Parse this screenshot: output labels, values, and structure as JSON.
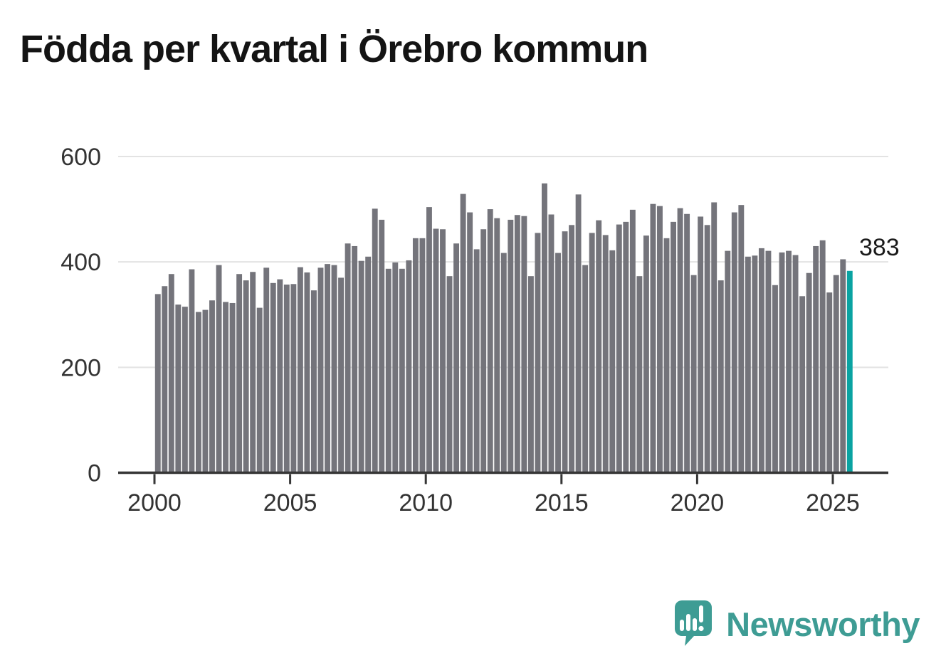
{
  "title": "Födda per kvartal i Örebro kommun",
  "branding": {
    "name": "Newsworthy",
    "icon": "speech-bubble-bar-chart-icon"
  },
  "colors": {
    "bar": "#74747b",
    "highlight": "#0aa3a2",
    "axis": "#363636",
    "grid": "#e3e3e3",
    "tick_label": "#333333",
    "title": "#141414",
    "annotation": "#1a1a1a",
    "brand": "#3e9c94"
  },
  "chart_data": {
    "type": "bar",
    "title": "Födda per kvartal i Örebro kommun",
    "xlabel": "",
    "ylabel": "",
    "grid": "horizontal",
    "legend": "none",
    "ylim": [
      0,
      620
    ],
    "yticks": [
      0,
      200,
      400,
      600
    ],
    "xticks": [
      2000,
      2005,
      2010,
      2015,
      2020,
      2025
    ],
    "highlight_index": 102,
    "highlight_label": "383",
    "x": [
      "2000 Q1",
      "2000 Q2",
      "2000 Q3",
      "2000 Q4",
      "2001 Q1",
      "2001 Q2",
      "2001 Q3",
      "2001 Q4",
      "2002 Q1",
      "2002 Q2",
      "2002 Q3",
      "2002 Q4",
      "2003 Q1",
      "2003 Q2",
      "2003 Q3",
      "2003 Q4",
      "2004 Q1",
      "2004 Q2",
      "2004 Q3",
      "2004 Q4",
      "2005 Q1",
      "2005 Q2",
      "2005 Q3",
      "2005 Q4",
      "2006 Q1",
      "2006 Q2",
      "2006 Q3",
      "2006 Q4",
      "2007 Q1",
      "2007 Q2",
      "2007 Q3",
      "2007 Q4",
      "2008 Q1",
      "2008 Q2",
      "2008 Q3",
      "2008 Q4",
      "2009 Q1",
      "2009 Q2",
      "2009 Q3",
      "2009 Q4",
      "2010 Q1",
      "2010 Q2",
      "2010 Q3",
      "2010 Q4",
      "2011 Q1",
      "2011 Q2",
      "2011 Q3",
      "2011 Q4",
      "2012 Q1",
      "2012 Q2",
      "2012 Q3",
      "2012 Q4",
      "2013 Q1",
      "2013 Q2",
      "2013 Q3",
      "2013 Q4",
      "2014 Q1",
      "2014 Q2",
      "2014 Q3",
      "2014 Q4",
      "2015 Q1",
      "2015 Q2",
      "2015 Q3",
      "2015 Q4",
      "2016 Q1",
      "2016 Q2",
      "2016 Q3",
      "2016 Q4",
      "2017 Q1",
      "2017 Q2",
      "2017 Q3",
      "2017 Q4",
      "2018 Q1",
      "2018 Q2",
      "2018 Q3",
      "2018 Q4",
      "2019 Q1",
      "2019 Q2",
      "2019 Q3",
      "2019 Q4",
      "2020 Q1",
      "2020 Q2",
      "2020 Q3",
      "2020 Q4",
      "2021 Q1",
      "2021 Q2",
      "2021 Q3",
      "2021 Q4",
      "2022 Q1",
      "2022 Q2",
      "2022 Q3",
      "2022 Q4",
      "2023 Q1",
      "2023 Q2",
      "2023 Q3",
      "2023 Q4",
      "2024 Q1",
      "2024 Q2",
      "2024 Q3",
      "2024 Q4",
      "2025 Q1",
      "2025 Q2",
      "2025 Q3"
    ],
    "values": [
      339,
      354,
      377,
      319,
      315,
      386,
      305,
      309,
      327,
      394,
      324,
      322,
      377,
      365,
      381,
      313,
      389,
      360,
      367,
      357,
      358,
      390,
      380,
      346,
      389,
      396,
      394,
      370,
      435,
      430,
      402,
      410,
      501,
      480,
      387,
      399,
      387,
      403,
      445,
      445,
      504,
      463,
      462,
      373,
      435,
      529,
      494,
      424,
      462,
      500,
      483,
      417,
      480,
      489,
      487,
      373,
      455,
      549,
      490,
      417,
      458,
      470,
      528,
      394,
      455,
      479,
      451,
      422,
      471,
      476,
      499,
      373,
      450,
      510,
      506,
      445,
      476,
      502,
      491,
      375,
      486,
      470,
      513,
      365,
      421,
      494,
      508,
      410,
      412,
      426,
      421,
      356,
      418,
      421,
      413,
      335,
      379,
      430,
      441,
      342,
      375,
      405,
      383
    ]
  }
}
